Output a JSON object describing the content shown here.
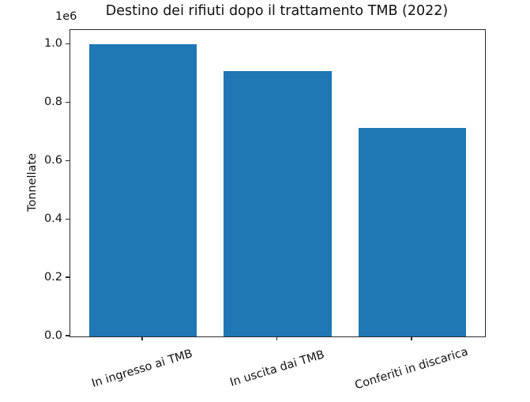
{
  "chart_data": {
    "type": "bar",
    "title": "Destino dei rifiuti dopo il trattamento TMB (2022)",
    "xlabel": "",
    "ylabel": "Tonnellate",
    "offset_label": "1e6",
    "categories": [
      "In ingresso ai TMB",
      "In uscita dai TMB",
      "Conferiti in discarica"
    ],
    "values": [
      1000000,
      910000,
      714000
    ],
    "ylim": [
      0,
      1050000
    ],
    "yticks": {
      "values": [
        0,
        200000,
        400000,
        600000,
        800000,
        1000000
      ],
      "labels": [
        "0.0",
        "0.2",
        "0.4",
        "0.6",
        "0.8",
        "1.0"
      ]
    },
    "grid": false,
    "legend": "none",
    "bar_color": "#1f77b4",
    "axis_color": "#2b2b2b",
    "text_color": "#111111"
  }
}
